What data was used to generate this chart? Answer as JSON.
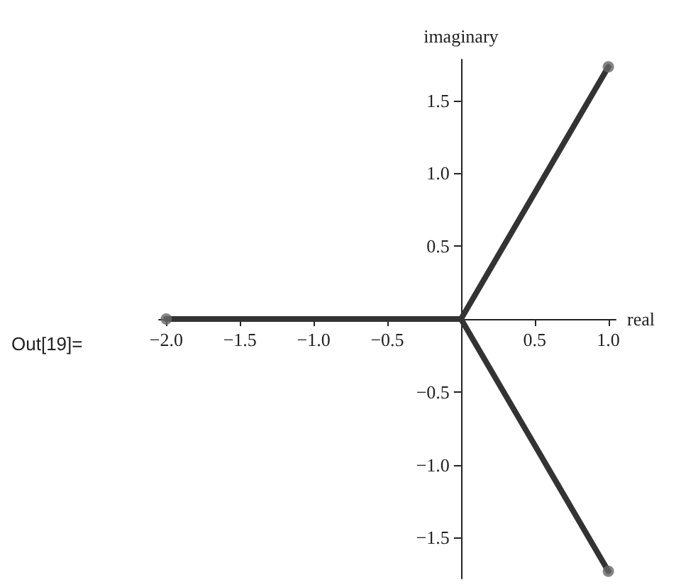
{
  "chart_data": {
    "type": "line",
    "xlabel": "real",
    "ylabel": "imaginary",
    "annotations": [
      "Out[19]="
    ],
    "series": [
      {
        "color": "#333333",
        "x": [
          0,
          1
        ],
        "values": [
          0,
          1.73
        ]
      },
      {
        "color": "#333333",
        "x": [
          0,
          -2
        ],
        "values": [
          0,
          0
        ]
      },
      {
        "color": "#333333",
        "x": [
          0,
          1
        ],
        "values": [
          0,
          -1.73
        ]
      },
      {
        "type": "scatter",
        "marker": "circle",
        "color": "#666666",
        "x": [
          1,
          -2,
          1
        ],
        "values": [
          1.73,
          0,
          -1.73
        ]
      }
    ],
    "xlim": [
      -2.05,
      1.05
    ],
    "ylim": [
      -1.78,
      1.78
    ],
    "xticks": [
      {
        "value": -2,
        "label": "−2.0"
      },
      {
        "value": -1.5,
        "label": "−1.5"
      },
      {
        "value": -1,
        "label": "−1.0"
      },
      {
        "value": -0.5,
        "label": "−0.5"
      },
      {
        "value": 0.5,
        "label": "0.5"
      },
      {
        "value": 1,
        "label": "1.0"
      }
    ],
    "yticks": [
      {
        "value": -1.5,
        "label": "−1.5"
      },
      {
        "value": -1,
        "label": "−1.0"
      },
      {
        "value": -0.5,
        "label": "−0.5"
      },
      {
        "value": 0.5,
        "label": "0.5"
      },
      {
        "value": 1,
        "label": "1.0"
      },
      {
        "value": 1.5,
        "label": "1.5"
      }
    ],
    "grid": false,
    "marker": "none",
    "line_style": "solid"
  }
}
